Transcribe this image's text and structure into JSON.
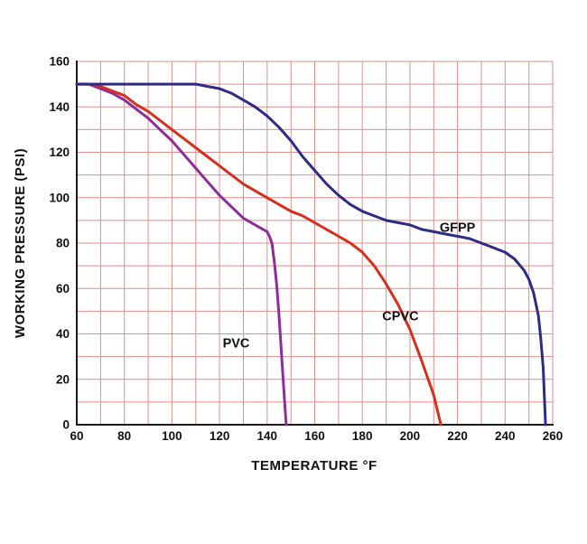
{
  "chart_data": {
    "type": "line",
    "title": "",
    "xlabel": "TEMPERATURE °F",
    "ylabel": "WORKING PRESSURE (PSI)",
    "xlim": [
      60,
      260
    ],
    "ylim": [
      0,
      160
    ],
    "x_ticks": [
      60,
      80,
      100,
      120,
      140,
      160,
      180,
      200,
      220,
      240,
      260
    ],
    "y_ticks": [
      0,
      20,
      40,
      60,
      80,
      100,
      120,
      140,
      160
    ],
    "x_minor_step": 10,
    "y_minor_step": 10,
    "grid": true,
    "grid_color": "#e18e88",
    "axis_color": "#1a1a1a",
    "background": "#ffffff",
    "legend_position": "inline-annotations",
    "series": [
      {
        "name": "PVC",
        "color": "#8f2b9b",
        "label_pos": [
          127,
          34
        ],
        "points": [
          [
            60,
            150
          ],
          [
            65,
            150
          ],
          [
            70,
            148
          ],
          [
            75,
            146
          ],
          [
            80,
            143
          ],
          [
            85,
            139
          ],
          [
            90,
            135
          ],
          [
            95,
            130
          ],
          [
            100,
            125
          ],
          [
            105,
            119
          ],
          [
            110,
            113
          ],
          [
            115,
            107
          ],
          [
            120,
            101
          ],
          [
            125,
            96
          ],
          [
            130,
            91
          ],
          [
            135,
            88
          ],
          [
            140,
            85
          ],
          [
            141,
            83
          ],
          [
            142,
            80
          ],
          [
            143,
            72
          ],
          [
            144,
            62
          ],
          [
            145,
            48
          ],
          [
            146,
            32
          ],
          [
            147,
            16
          ],
          [
            148,
            0
          ]
        ]
      },
      {
        "name": "CPVC",
        "color": "#d6301d",
        "label_pos": [
          196,
          46
        ],
        "points": [
          [
            60,
            150
          ],
          [
            65,
            150
          ],
          [
            70,
            149
          ],
          [
            75,
            147
          ],
          [
            80,
            145
          ],
          [
            85,
            141
          ],
          [
            90,
            138
          ],
          [
            95,
            134
          ],
          [
            100,
            130
          ],
          [
            105,
            126
          ],
          [
            110,
            122
          ],
          [
            115,
            118
          ],
          [
            120,
            114
          ],
          [
            125,
            110
          ],
          [
            130,
            106
          ],
          [
            135,
            103
          ],
          [
            140,
            100
          ],
          [
            145,
            97
          ],
          [
            150,
            94
          ],
          [
            155,
            92
          ],
          [
            160,
            89
          ],
          [
            165,
            86
          ],
          [
            170,
            83
          ],
          [
            175,
            80
          ],
          [
            180,
            76
          ],
          [
            185,
            70
          ],
          [
            190,
            62
          ],
          [
            195,
            53
          ],
          [
            200,
            42
          ],
          [
            205,
            28
          ],
          [
            210,
            13
          ],
          [
            213,
            0
          ]
        ]
      },
      {
        "name": "GFPP",
        "color": "#2c2c87",
        "label_pos": [
          220,
          85
        ],
        "points": [
          [
            60,
            150
          ],
          [
            70,
            150
          ],
          [
            80,
            150
          ],
          [
            90,
            150
          ],
          [
            100,
            150
          ],
          [
            110,
            150
          ],
          [
            115,
            149
          ],
          [
            120,
            148
          ],
          [
            125,
            146
          ],
          [
            130,
            143
          ],
          [
            135,
            140
          ],
          [
            140,
            136
          ],
          [
            145,
            131
          ],
          [
            150,
            125
          ],
          [
            155,
            118
          ],
          [
            160,
            112
          ],
          [
            165,
            106
          ],
          [
            170,
            101
          ],
          [
            175,
            97
          ],
          [
            180,
            94
          ],
          [
            185,
            92
          ],
          [
            190,
            90
          ],
          [
            195,
            89
          ],
          [
            200,
            88
          ],
          [
            205,
            86
          ],
          [
            210,
            85
          ],
          [
            215,
            84
          ],
          [
            220,
            83
          ],
          [
            225,
            82
          ],
          [
            230,
            80
          ],
          [
            235,
            78
          ],
          [
            240,
            76
          ],
          [
            244,
            73
          ],
          [
            248,
            68
          ],
          [
            250,
            64
          ],
          [
            252,
            58
          ],
          [
            254,
            48
          ],
          [
            255,
            38
          ],
          [
            256,
            25
          ],
          [
            257,
            0
          ]
        ]
      }
    ]
  }
}
